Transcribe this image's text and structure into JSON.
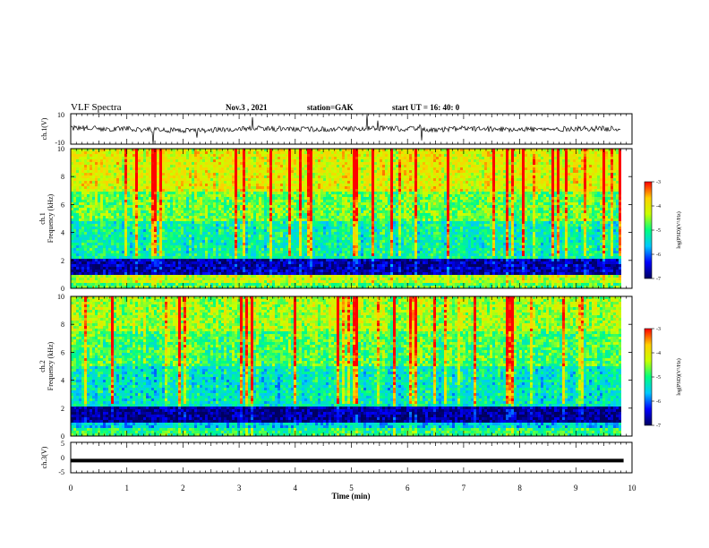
{
  "header": {
    "title": "VLF Spectra",
    "date": "Nov.3 , 2021",
    "station": "station=GAK",
    "start": "start UT = 16: 40: 0"
  },
  "colorbar": {
    "label": "log(PSD)(V²/Hz)",
    "ticks": [
      "-3",
      "-4",
      "-5",
      "-6",
      "-7"
    ],
    "range": [
      -7,
      -3
    ],
    "colors": [
      "#000060",
      "#0000ff",
      "#00c8ff",
      "#00ff80",
      "#c8ff00",
      "#ffd000",
      "#ff0000",
      "#ffffff"
    ]
  },
  "x_axis": {
    "label": "Time (min)",
    "ticks": [
      "0",
      "1",
      "2",
      "3",
      "4",
      "5",
      "6",
      "7",
      "8",
      "9",
      "10"
    ]
  },
  "chart_data": [
    {
      "type": "line",
      "ylabel": "ch.1(V)",
      "yticks": [
        "10",
        "-10"
      ],
      "ylim": [
        -10,
        10
      ],
      "xlim": [
        0,
        10
      ],
      "series": [
        {
          "x": [
            0,
            0.5,
            1,
            1.5,
            2,
            2.5,
            3,
            3.5,
            4,
            4.5,
            5,
            5.5,
            6,
            6.5,
            7,
            7.5,
            8,
            8.5,
            9,
            9.5,
            9.8
          ],
          "values": [
            0.5,
            0.3,
            0.0,
            -0.5,
            -1.2,
            -0.8,
            0.2,
            0.4,
            0.1,
            -0.3,
            0.0,
            0.3,
            0.1,
            -0.4,
            0.2,
            -0.2,
            0.0,
            -0.5,
            0.3,
            0.1,
            0.2
          ]
        }
      ]
    },
    {
      "type": "heatmap",
      "ylabel": "ch.1 Frequency (kHz)",
      "yticks": [
        "0",
        "2",
        "4",
        "6",
        "8",
        "10"
      ],
      "ylim": [
        0,
        10
      ],
      "xlim": [
        0,
        9.85
      ],
      "freq_bands": [
        {
          "from": 0,
          "to": 0.4,
          "value": -4.8
        },
        {
          "from": 0.4,
          "to": 0.9,
          "value": -4.3
        },
        {
          "from": 0.9,
          "to": 2.2,
          "value": -6.7
        },
        {
          "from": 2.2,
          "to": 4.8,
          "value": -5.2
        },
        {
          "from": 4.8,
          "to": 7.0,
          "value": -4.7
        },
        {
          "from": 7.0,
          "to": 10,
          "value": -4.1
        }
      ]
    },
    {
      "type": "heatmap",
      "ylabel": "ch.2 Frequency (kHz)",
      "yticks": [
        "0",
        "2",
        "4",
        "6",
        "8",
        "10"
      ],
      "ylim": [
        0,
        10
      ],
      "xlim": [
        0,
        9.85
      ],
      "freq_bands": [
        {
          "from": 0,
          "to": 0.5,
          "value": -5.0
        },
        {
          "from": 0.5,
          "to": 1.0,
          "value": -5.6
        },
        {
          "from": 1.0,
          "to": 2.2,
          "value": -6.8
        },
        {
          "from": 2.2,
          "to": 5.0,
          "value": -5.3
        },
        {
          "from": 5.0,
          "to": 7.5,
          "value": -4.8
        },
        {
          "from": 7.5,
          "to": 10,
          "value": -4.4
        }
      ]
    },
    {
      "type": "line",
      "ylabel": "ch.3(V)",
      "yticks": [
        "5",
        "0",
        "-5"
      ],
      "ylim": [
        -5,
        5
      ],
      "xlim": [
        0,
        10
      ],
      "series": [
        {
          "x": [
            0,
            9.85
          ],
          "values": [
            -1,
            -1
          ]
        }
      ]
    }
  ]
}
